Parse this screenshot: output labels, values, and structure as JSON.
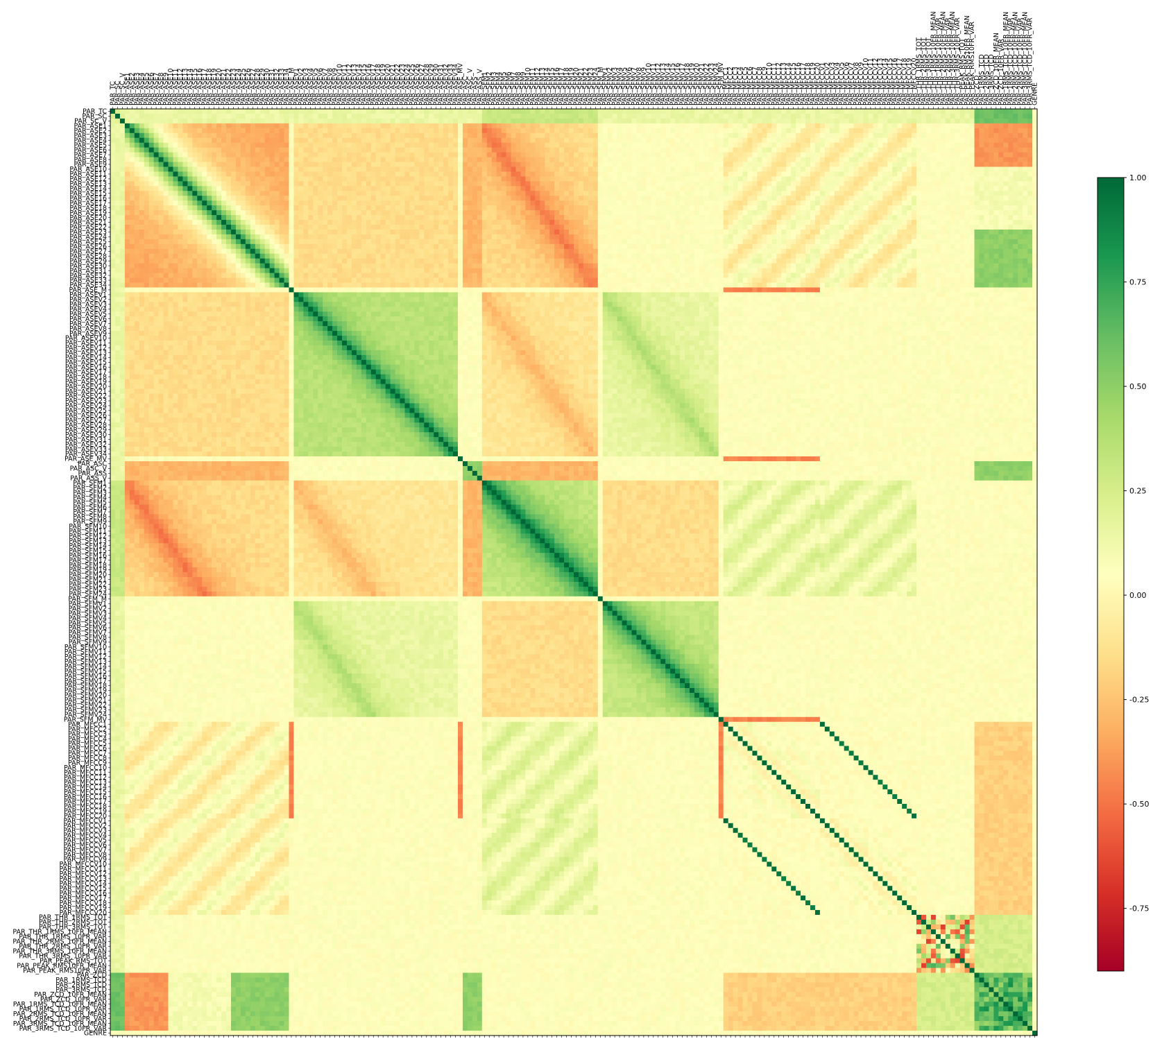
{
  "chart_data": {
    "type": "heatmap",
    "title": "",
    "xlabel": "",
    "ylabel": "",
    "colormap": "RdYlGn",
    "colormap_stops": [
      "#a50026",
      "#d73027",
      "#f46d43",
      "#fdae61",
      "#fee08b",
      "#ffffbf",
      "#d9ef8b",
      "#a6d96a",
      "#66bd63",
      "#1a9850",
      "#006837"
    ],
    "vmin": -0.9,
    "vmax": 1.0,
    "colorbar_ticks": [
      "1.00",
      "0.75",
      "0.50",
      "0.25",
      "0.00",
      "-0.25",
      "-0.50",
      "-0.75"
    ],
    "colorbar_tick_values": [
      1.0,
      0.75,
      0.5,
      0.25,
      0.0,
      -0.25,
      -0.5,
      -0.75
    ],
    "features": [
      "PAR_TC",
      "PAR_SC",
      "PAR_SC_V",
      "PAR_ASE1",
      "PAR_ASE2",
      "PAR_ASE3",
      "PAR_ASE4",
      "PAR_ASE5",
      "PAR_ASE6",
      "PAR_ASE7",
      "PAR_ASE8",
      "PAR_ASE9",
      "PAR_ASE10",
      "PAR_ASE11",
      "PAR_ASE12",
      "PAR_ASE13",
      "PAR_ASE14",
      "PAR_ASE15",
      "PAR_ASE16",
      "PAR_ASE17",
      "PAR_ASE18",
      "PAR_ASE19",
      "PAR_ASE20",
      "PAR_ASE21",
      "PAR_ASE22",
      "PAR_ASE23",
      "PAR_ASE24",
      "PAR_ASE25",
      "PAR_ASE26",
      "PAR_ASE27",
      "PAR_ASE28",
      "PAR_ASE29",
      "PAR_ASE30",
      "PAR_ASE31",
      "PAR_ASE32",
      "PAR_ASE33",
      "PAR_ASE34",
      "PAR_ASE_M",
      "PAR_ASEV1",
      "PAR_ASEV2",
      "PAR_ASEV3",
      "PAR_ASEV4",
      "PAR_ASEV5",
      "PAR_ASEV6",
      "PAR_ASEV7",
      "PAR_ASEV8",
      "PAR_ASEV9",
      "PAR_ASEV10",
      "PAR_ASEV11",
      "PAR_ASEV12",
      "PAR_ASEV13",
      "PAR_ASEV14",
      "PAR_ASEV15",
      "PAR_ASEV16",
      "PAR_ASEV17",
      "PAR_ASEV18",
      "PAR_ASEV19",
      "PAR_ASEV20",
      "PAR_ASEV21",
      "PAR_ASEV22",
      "PAR_ASEV23",
      "PAR_ASEV24",
      "PAR_ASEV25",
      "PAR_ASEV26",
      "PAR_ASEV27",
      "PAR_ASEV28",
      "PAR_ASEV29",
      "PAR_ASEV30",
      "PAR_ASEV31",
      "PAR_ASEV32",
      "PAR_ASEV33",
      "PAR_ASEV34",
      "PAR_ASE_MV",
      "PAR_ASC",
      "PAR_ASC_V",
      "PAR_ASS",
      "PAR_ASS_V",
      "PAR_SFM1",
      "PAR_SFM2",
      "PAR_SFM3",
      "PAR_SFM4",
      "PAR_SFM5",
      "PAR_SFM6",
      "PAR_SFM7",
      "PAR_SFM8",
      "PAR_SFM9",
      "PAR_SFM10",
      "PAR_SFM11",
      "PAR_SFM12",
      "PAR_SFM13",
      "PAR_SFM14",
      "PAR_SFM15",
      "PAR_SFM16",
      "PAR_SFM17",
      "PAR_SFM18",
      "PAR_SFM19",
      "PAR_SFM20",
      "PAR_SFM21",
      "PAR_SFM22",
      "PAR_SFM23",
      "PAR_SFM24",
      "PAR_SFM_M",
      "PAR_SFMV1",
      "PAR_SFMV2",
      "PAR_SFMV3",
      "PAR_SFMV4",
      "PAR_SFMV5",
      "PAR_SFMV6",
      "PAR_SFMV7",
      "PAR_SFMV8",
      "PAR_SFMV9",
      "PAR_SFMV10",
      "PAR_SFMV11",
      "PAR_SFMV12",
      "PAR_SFMV13",
      "PAR_SFMV14",
      "PAR_SFMV15",
      "PAR_SFMV16",
      "PAR_SFMV17",
      "PAR_SFMV18",
      "PAR_SFMV19",
      "PAR_SFMV20",
      "PAR_SFMV21",
      "PAR_SFMV22",
      "PAR_SFMV23",
      "PAR_SFMV24",
      "PAR_SFM_MV",
      "PAR_MFCC1",
      "PAR_MFCC2",
      "PAR_MFCC3",
      "PAR_MFCC4",
      "PAR_MFCC5",
      "PAR_MFCC6",
      "PAR_MFCC7",
      "PAR_MFCC8",
      "PAR_MFCC9",
      "PAR_MFCC10",
      "PAR_MFCC11",
      "PAR_MFCC12",
      "PAR_MFCC13",
      "PAR_MFCC14",
      "PAR_MFCC15",
      "PAR_MFCC16",
      "PAR_MFCC17",
      "PAR_MFCC18",
      "PAR_MFCC19",
      "PAR_MFCC20",
      "PAR_MFCCV1",
      "PAR_MFCCV2",
      "PAR_MFCCV3",
      "PAR_MFCCV4",
      "PAR_MFCCV5",
      "PAR_MFCCV6",
      "PAR_MFCCV7",
      "PAR_MFCCV8",
      "PAR_MFCCV9",
      "PAR_MFCCV10",
      "PAR_MFCCV11",
      "PAR_MFCCV12",
      "PAR_MFCCV13",
      "PAR_MFCCV14",
      "PAR_MFCCV15",
      "PAR_MFCCV16",
      "PAR_MFCCV17",
      "PAR_MFCCV18",
      "PAR_MFCCV19",
      "PAR_MFCCV20",
      "PAR_THR_1RMS_TOT",
      "PAR_THR_2RMS_TOT",
      "PAR_THR_3RMS_TOT",
      "PAR_THR_1RMS_10FR_MEAN",
      "PAR_THR_1RMS_10FR_VAR",
      "PAR_THR_2RMS_10FR_MEAN",
      "PAR_THR_2RMS_10FR_VAR",
      "PAR_THR_3RMS_10FR_MEAN",
      "PAR_THR_3RMS_10FR_VAR",
      "PAR_PEAK_RMS_TOT",
      "PAR_PEAK_RMS10FR_MEAN",
      "PAR_PEAK_RMS10FR_VAR",
      "PAR_ZCD",
      "PAR_1RMS_TCD",
      "PAR_2RMS_TCD",
      "PAR_3RMS_TCD",
      "PAR_ZCD_10FR_MEAN",
      "PAR_ZCD_10FR_VAR",
      "PAR_1RMS_TCD_10FR_MEAN",
      "PAR_1RMS_TCD_10FR_VAR",
      "PAR_2RMS_TCD_10FR_MEAN",
      "PAR_2RMS_TCD_10FR_VAR",
      "PAR_3RMS_TCD_10FR_MEAN",
      "PAR_3RMS_TCD_10FR_VAR",
      "GENRE"
    ],
    "grid": false
  }
}
